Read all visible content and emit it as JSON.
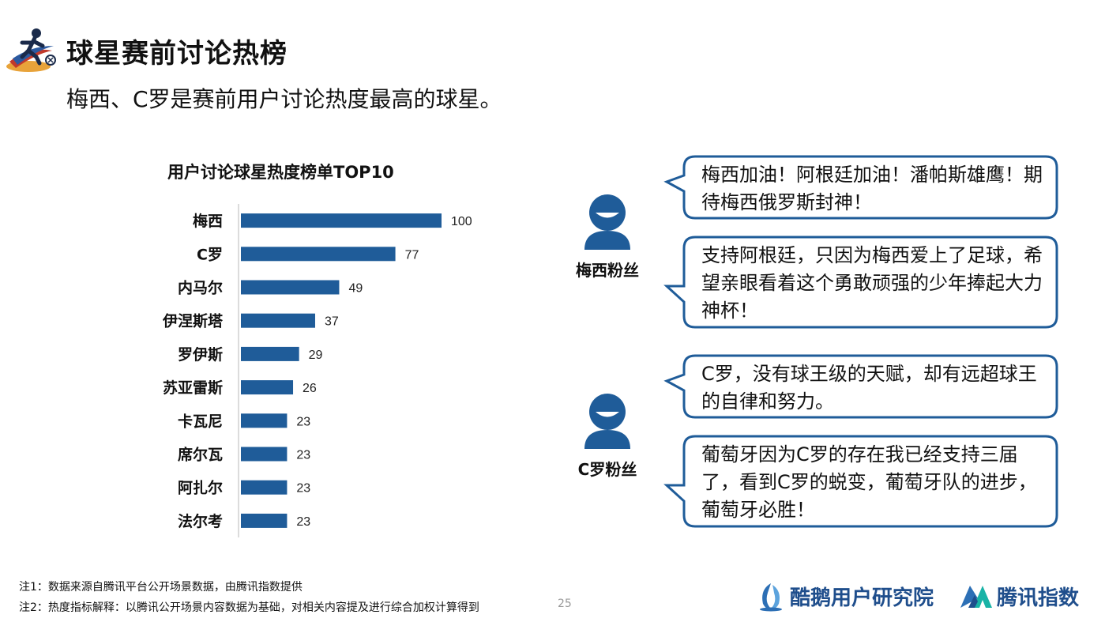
{
  "header": {
    "title": "球星赛前讨论热榜",
    "subtitle": "梅西、C罗是赛前用户讨论热度最高的球星。"
  },
  "chart_data": {
    "type": "bar",
    "orientation": "horizontal",
    "title": "用户讨论球星热度榜单TOP10",
    "categories": [
      "梅西",
      "C罗",
      "内马尔",
      "伊涅斯塔",
      "罗伊斯",
      "苏亚雷斯",
      "卡瓦尼",
      "席尔瓦",
      "阿扎尔",
      "法尔考"
    ],
    "values": [
      100,
      77,
      49,
      37,
      29,
      26,
      23,
      23,
      23,
      23
    ],
    "xlim": [
      0,
      100
    ],
    "bar_color": "#1F5C99",
    "data_labels": true,
    "grid": false
  },
  "fans": [
    {
      "label": "梅西粉丝",
      "comments": [
        "梅西加油！阿根廷加油！潘帕斯雄鹰！期待梅西俄罗斯封神！",
        "支持阿根廷，只因为梅西爱上了足球，希望亲眼看着这个勇敢顽强的少年捧起大力神杯！"
      ]
    },
    {
      "label": "C罗粉丝",
      "comments": [
        "C罗，没有球王级的天赋，却有远超球王的自律和努力。",
        "葡萄牙因为C罗的存在我已经支持三届了，看到C罗的蜕变，葡萄牙队的进步，葡萄牙必胜！"
      ]
    }
  ],
  "notes": {
    "note1": "注1：数据来源自腾讯平台公开场景数据，由腾讯指数提供",
    "note2": "注2：热度指标解释：以腾讯公开场景内容数据为基础，对相关内容提及进行综合加权计算得到"
  },
  "page_number": "25",
  "brands": {
    "left": "酷鹅用户研究院",
    "right": "腾讯指数"
  },
  "colors": {
    "bar": "#1F5C99",
    "bubble_border": "#1F5C99",
    "avatar": "#1F5C99",
    "brand_text": "#1F4E8C"
  },
  "icons": {
    "logo": "football-player-icon",
    "avatar": "user-avatar-icon",
    "brand_left": "penguin-logo-icon",
    "brand_right": "tencent-index-logo-icon"
  }
}
